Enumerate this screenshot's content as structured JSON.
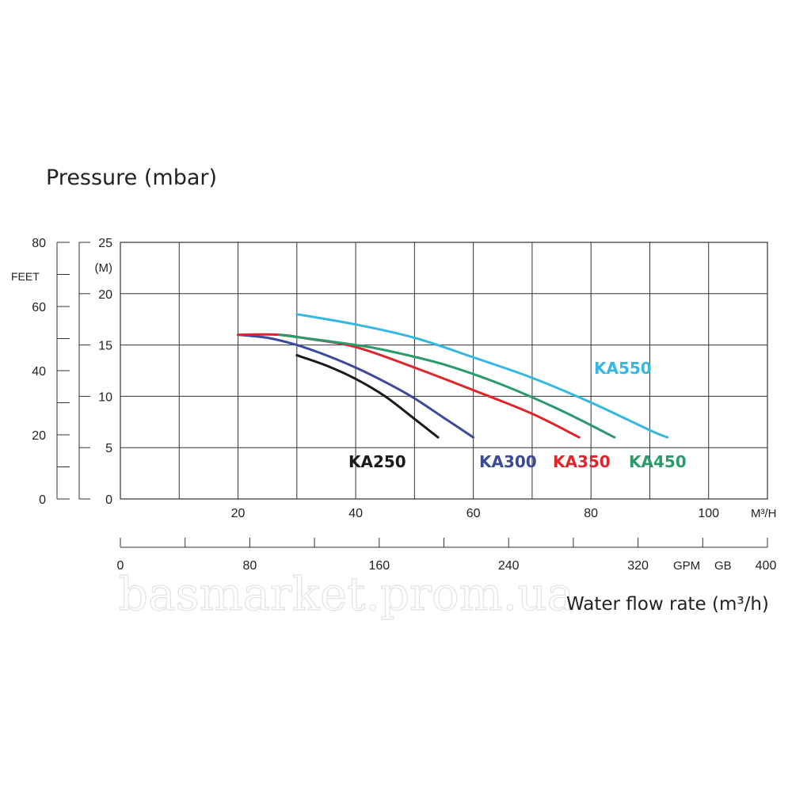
{
  "chart_data": {
    "type": "line",
    "title": "Pressure (mbar)",
    "xlabel": "Water flow rate (m³/h)",
    "x_unit": "M³/H",
    "xlim": [
      0,
      110
    ],
    "ylim": [
      0,
      25
    ],
    "y_unit": "(M)",
    "y_ticks": [
      0,
      5,
      10,
      15,
      20,
      25
    ],
    "x_ticks": [
      20,
      40,
      60,
      80,
      100
    ],
    "feet_axis": {
      "label": "FEET",
      "ticks": [
        0,
        20,
        40,
        60,
        80
      ],
      "max": 80
    },
    "gpm_axis": {
      "label": "GPM",
      "label2": "GB",
      "ticks": [
        0,
        80,
        160,
        240,
        320,
        400
      ],
      "max": 400
    },
    "grid": true,
    "series": [
      {
        "name": "KA250",
        "color": "#1a1a1a",
        "x": [
          30,
          35,
          40,
          45,
          50,
          54
        ],
        "y": [
          14,
          13,
          11.7,
          10,
          7.8,
          6
        ]
      },
      {
        "name": "KA300",
        "color": "#3a4a9a",
        "x": [
          20,
          25,
          30,
          35,
          40,
          45,
          50,
          55,
          60
        ],
        "y": [
          16,
          15.7,
          15,
          14,
          12.8,
          11.4,
          9.8,
          7.9,
          6
        ]
      },
      {
        "name": "KA350",
        "color": "#e0242a",
        "x": [
          20,
          27,
          32,
          40,
          50,
          60,
          70,
          78
        ],
        "y": [
          16,
          16,
          15.6,
          14.8,
          12.8,
          10.6,
          8.3,
          6
        ]
      },
      {
        "name": "KA450",
        "color": "#2a9a6a",
        "x": [
          27,
          35,
          40,
          45,
          55,
          65,
          75,
          84
        ],
        "y": [
          16,
          15.4,
          15,
          14.5,
          13.1,
          11.1,
          8.6,
          6
        ]
      },
      {
        "name": "KA550",
        "color": "#35b8e0",
        "x": [
          30,
          40,
          50,
          60,
          70,
          80,
          90,
          93
        ],
        "y": [
          18,
          17,
          15.7,
          13.8,
          11.8,
          9.4,
          6.7,
          6
        ]
      }
    ]
  },
  "watermark": "basmarket.prom.ua"
}
